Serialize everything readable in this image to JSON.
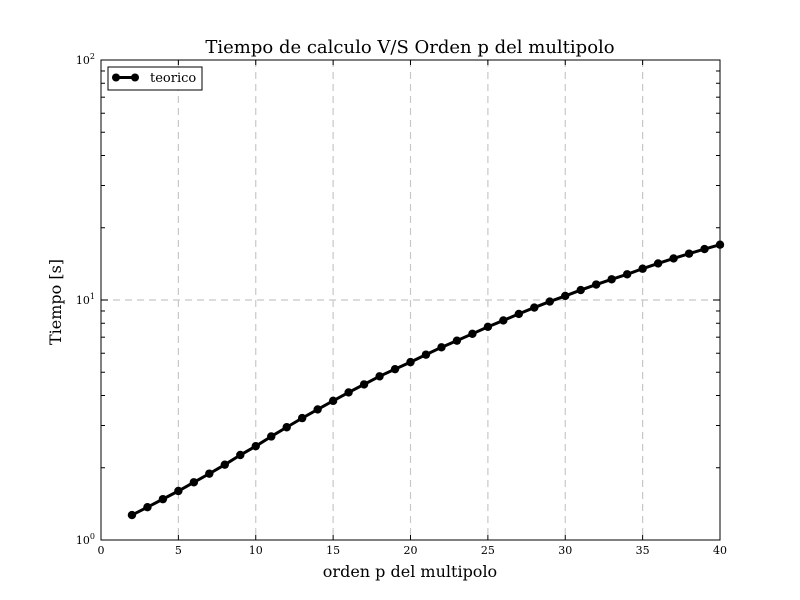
{
  "chart_data": {
    "type": "line",
    "title": "Tiempo de calculo V/S Orden p del multipolo",
    "xlabel": "orden p del multipolo",
    "ylabel": "Tiempo [s]",
    "xlim": [
      0,
      40
    ],
    "ylim": [
      1,
      100
    ],
    "yscale": "log",
    "grid": true,
    "legend_position": "upper-left",
    "xticks": [
      0,
      5,
      10,
      15,
      20,
      25,
      30,
      35,
      40
    ],
    "ytick_labels": [
      {
        "base": "10",
        "exp": "0",
        "value": 1
      },
      {
        "base": "10",
        "exp": "1",
        "value": 10
      },
      {
        "base": "10",
        "exp": "2",
        "value": 100
      }
    ],
    "series": [
      {
        "name": "teorico",
        "color": "#000000",
        "marker": "circle",
        "x": [
          2,
          3,
          4,
          5,
          6,
          7,
          8,
          9,
          10,
          11,
          12,
          13,
          14,
          15,
          16,
          17,
          18,
          19,
          20,
          21,
          22,
          23,
          24,
          25,
          26,
          27,
          28,
          29,
          30,
          31,
          32,
          33,
          34,
          35,
          36,
          37,
          38,
          39,
          40
        ],
        "y": [
          1.27,
          1.37,
          1.48,
          1.6,
          1.74,
          1.89,
          2.06,
          2.26,
          2.46,
          2.7,
          2.95,
          3.22,
          3.5,
          3.8,
          4.12,
          4.45,
          4.81,
          5.15,
          5.51,
          5.92,
          6.35,
          6.77,
          7.23,
          7.73,
          8.22,
          8.75,
          9.3,
          9.85,
          10.4,
          11.0,
          11.6,
          12.2,
          12.8,
          13.5,
          14.2,
          14.9,
          15.6,
          16.3,
          17.0
        ]
      }
    ]
  }
}
